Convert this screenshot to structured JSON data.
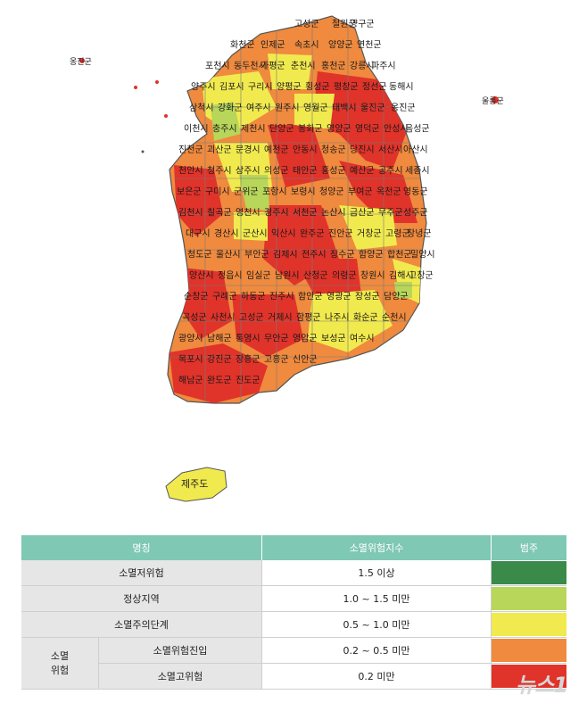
{
  "map": {
    "region_labels": [
      "고성군",
      "철원군",
      "양구군",
      "화천군",
      "인제군",
      "속초시",
      "양양군",
      "연천군",
      "포천시",
      "동두천시",
      "가평군",
      "춘천시",
      "홍천군",
      "강릉시",
      "파주시",
      "양주시",
      "김포시",
      "구리시",
      "양평군",
      "횡성군",
      "평창군",
      "정선군",
      "동해시",
      "삼척시",
      "강화군",
      "여주시",
      "원주시",
      "영월군",
      "태백시",
      "울진군",
      "옹진군",
      "이천시",
      "충주시",
      "제천시",
      "단양군",
      "봉화군",
      "영양군",
      "영덕군",
      "안성시",
      "음성군",
      "진천군",
      "괴산군",
      "문경시",
      "예천군",
      "안동시",
      "청송군",
      "당진시",
      "서산시",
      "아산시",
      "천안시",
      "청주시",
      "상주시",
      "의성군",
      "태안군",
      "홍성군",
      "예산군",
      "공주시",
      "세종시",
      "보은군",
      "구미시",
      "군위군",
      "포항시",
      "보령시",
      "청양군",
      "부여군",
      "옥천군",
      "영동군",
      "김천시",
      "칠곡군",
      "영천시",
      "경주시",
      "서천군",
      "논산시",
      "금산군",
      "무주군",
      "성주군",
      "대구시",
      "경산시",
      "군산시",
      "익산시",
      "완주군",
      "진안군",
      "거창군",
      "고령군",
      "창녕군",
      "청도군",
      "울산시",
      "부안군",
      "김제시",
      "전주시",
      "장수군",
      "함양군",
      "합천군",
      "밀양시",
      "양산시",
      "정읍시",
      "임실군",
      "남원시",
      "산청군",
      "의령군",
      "창원시",
      "김해시",
      "고창군",
      "순창군",
      "구례군",
      "하동군",
      "진주시",
      "함안군",
      "영광군",
      "장성군",
      "담양군",
      "곡성군",
      "사천시",
      "고성군",
      "거제시",
      "함평군",
      "나주시",
      "화순군",
      "순천시",
      "광양시",
      "남해군",
      "통영시",
      "무안군",
      "영암군",
      "보성군",
      "여수시",
      "목포시",
      "강진군",
      "장흥군",
      "고흥군",
      "신안군",
      "해남군",
      "완도군",
      "진도군"
    ],
    "island_labels": [
      "옹진군",
      "울릉군"
    ],
    "jeju_label": "제주도"
  },
  "legend": {
    "headers": [
      "명칭",
      "소멸위험지수",
      "범주"
    ],
    "group_label": "소멸\n위험",
    "rows": [
      {
        "name": "소멸저위험",
        "index": "1.5 이상",
        "color": "#3a8b4a"
      },
      {
        "name": "정상지역",
        "index": "1.0 ~ 1.5 미만",
        "color": "#b7d65a"
      },
      {
        "name": "소멸주의단계",
        "index": "0.5 ~ 1.0 미만",
        "color": "#f1ea4e"
      },
      {
        "name": "소멸위험진입",
        "index": "0.2 ~ 0.5 미만",
        "color": "#ef8a3e"
      },
      {
        "name": "소멸고위험",
        "index": "0.2 미만",
        "color": "#e0332a"
      }
    ]
  },
  "watermark": "뉴스1"
}
